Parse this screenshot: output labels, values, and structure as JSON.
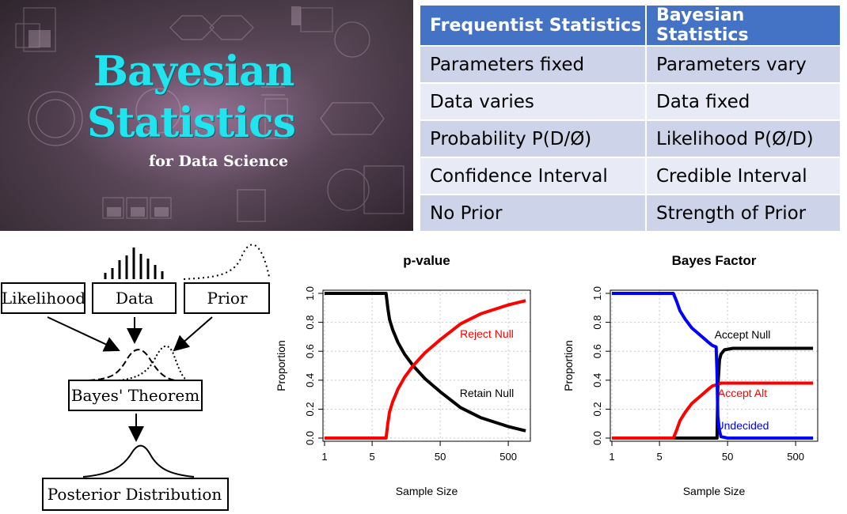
{
  "banner": {
    "title_line1": "Bayesian",
    "title_line2": "Statistics",
    "subtitle": "for Data Science"
  },
  "table": {
    "headers": [
      "Frequentist  Statistics",
      "Bayesian Statistics"
    ],
    "rows": [
      [
        "Parameters fixed",
        "Parameters vary"
      ],
      [
        "Data varies",
        "Data fixed"
      ],
      [
        "Probability P(D/Ø)",
        "Likelihood P(Ø/D)"
      ],
      [
        "Confidence Interval",
        "Credible Interval"
      ],
      [
        "No Prior",
        "Strength of Prior"
      ]
    ],
    "header_color": "#4472c4",
    "row_colors": [
      "#cdd4ea",
      "#e8ebf5"
    ]
  },
  "diagram": {
    "likelihood": "Likelihood",
    "data": "Data",
    "prior": "Prior",
    "theorem": "Bayes' Theorem",
    "posterior": "Posterior Distribution"
  },
  "chart_data": [
    {
      "type": "line",
      "title": "p-value",
      "xlabel": "Sample Size",
      "ylabel": "Proportion",
      "x_scale": "log",
      "xlim": [
        1,
        1000
      ],
      "ylim": [
        0,
        1
      ],
      "xticks": [
        1,
        5,
        50,
        500
      ],
      "yticks": [
        0.0,
        0.2,
        0.4,
        0.6,
        0.8,
        1.0
      ],
      "grid": true,
      "series": [
        {
          "name": "Retain Null",
          "color": "#000000",
          "x": [
            1,
            8,
            8.5,
            9,
            10,
            12,
            15,
            20,
            30,
            50,
            100,
            200,
            500,
            900
          ],
          "y": [
            1.0,
            1.0,
            0.9,
            0.82,
            0.75,
            0.66,
            0.58,
            0.5,
            0.41,
            0.32,
            0.21,
            0.14,
            0.08,
            0.05
          ]
        },
        {
          "name": "Reject Null",
          "color": "#ff0000",
          "x": [
            1,
            8,
            8.5,
            9,
            10,
            12,
            15,
            20,
            30,
            50,
            100,
            200,
            500,
            900
          ],
          "y": [
            0.0,
            0.0,
            0.1,
            0.18,
            0.25,
            0.34,
            0.42,
            0.5,
            0.59,
            0.68,
            0.79,
            0.86,
            0.92,
            0.95
          ]
        }
      ]
    },
    {
      "type": "line",
      "title": "Bayes Factor",
      "xlabel": "Sample Size",
      "ylabel": "Proportion",
      "x_scale": "log",
      "xlim": [
        1,
        1000
      ],
      "ylim": [
        0,
        1
      ],
      "xticks": [
        1,
        5,
        50,
        500
      ],
      "yticks": [
        0.0,
        0.2,
        0.4,
        0.6,
        0.8,
        1.0
      ],
      "grid": true,
      "series": [
        {
          "name": "Accept Null",
          "color": "#000000",
          "x": [
            1,
            35,
            36,
            38,
            40,
            45,
            60,
            100,
            900
          ],
          "y": [
            0.0,
            0.0,
            0.35,
            0.54,
            0.58,
            0.61,
            0.62,
            0.62,
            0.62
          ]
        },
        {
          "name": "Accept Alt",
          "color": "#ff0000",
          "x": [
            1,
            8,
            9,
            10,
            12,
            15,
            20,
            25,
            30,
            35,
            40,
            100,
            900
          ],
          "y": [
            0.0,
            0.0,
            0.06,
            0.12,
            0.18,
            0.24,
            0.29,
            0.33,
            0.36,
            0.37,
            0.38,
            0.38,
            0.38
          ]
        },
        {
          "name": "Undecided",
          "color": "#0000ff",
          "x": [
            1,
            8,
            9,
            10,
            12,
            15,
            20,
            25,
            30,
            34,
            35,
            36,
            38,
            40,
            50,
            900
          ],
          "y": [
            1.0,
            1.0,
            0.94,
            0.88,
            0.82,
            0.76,
            0.71,
            0.67,
            0.64,
            0.63,
            0.45,
            0.15,
            0.05,
            0.01,
            0.0,
            0.0
          ]
        }
      ]
    }
  ]
}
